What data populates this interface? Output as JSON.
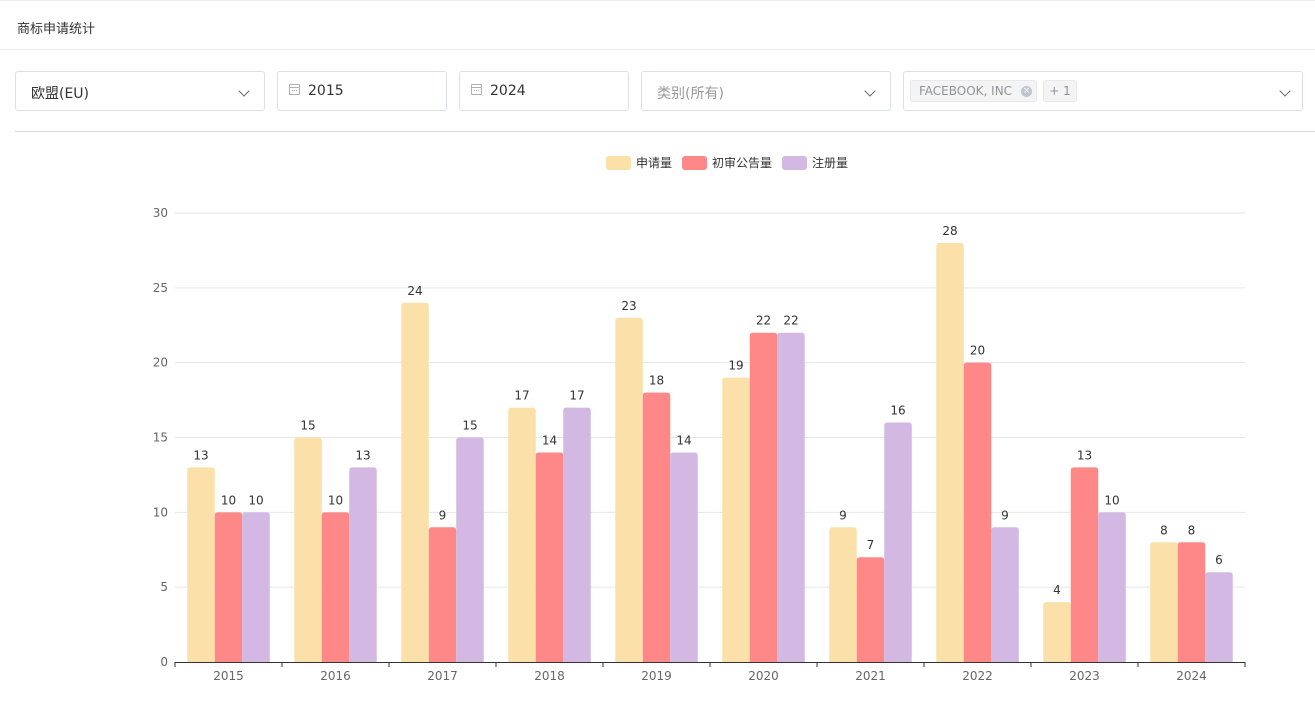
{
  "header": {
    "title": "商标申请统计"
  },
  "filters": {
    "region": {
      "value": "欧盟(EU)"
    },
    "start_year": {
      "value": "2015"
    },
    "end_year": {
      "value": "2024"
    },
    "category": {
      "placeholder": "类别(所有)"
    },
    "applicant": {
      "tag": "FACEBOOK, INC",
      "more": "+ 1"
    }
  },
  "icons": {
    "region_dropdown": "chevron-down-icon",
    "start_calendar": "calendar-icon",
    "end_calendar": "calendar-icon",
    "category_dropdown": "chevron-down-icon",
    "tag_close": "close-circle-icon",
    "applicant_dropdown": "chevron-down-icon"
  },
  "chart_data": {
    "type": "bar",
    "categories": [
      "2015",
      "2016",
      "2017",
      "2018",
      "2019",
      "2020",
      "2021",
      "2022",
      "2023",
      "2024"
    ],
    "series": [
      {
        "name": "申请量",
        "color": "#fce0a9",
        "values": [
          13,
          15,
          24,
          17,
          23,
          19,
          9,
          28,
          4,
          8
        ]
      },
      {
        "name": "初审公告量",
        "color": "#fe8787",
        "values": [
          10,
          10,
          9,
          14,
          18,
          22,
          7,
          20,
          13,
          8
        ]
      },
      {
        "name": "注册量",
        "color": "#d2b8e3",
        "values": [
          10,
          13,
          15,
          17,
          14,
          22,
          16,
          9,
          10,
          6
        ]
      }
    ],
    "yticks": [
      0,
      5,
      10,
      15,
      20,
      25,
      30
    ],
    "ylim": [
      0,
      30
    ],
    "grid": true,
    "legend": "top-center",
    "data_labels": true
  }
}
